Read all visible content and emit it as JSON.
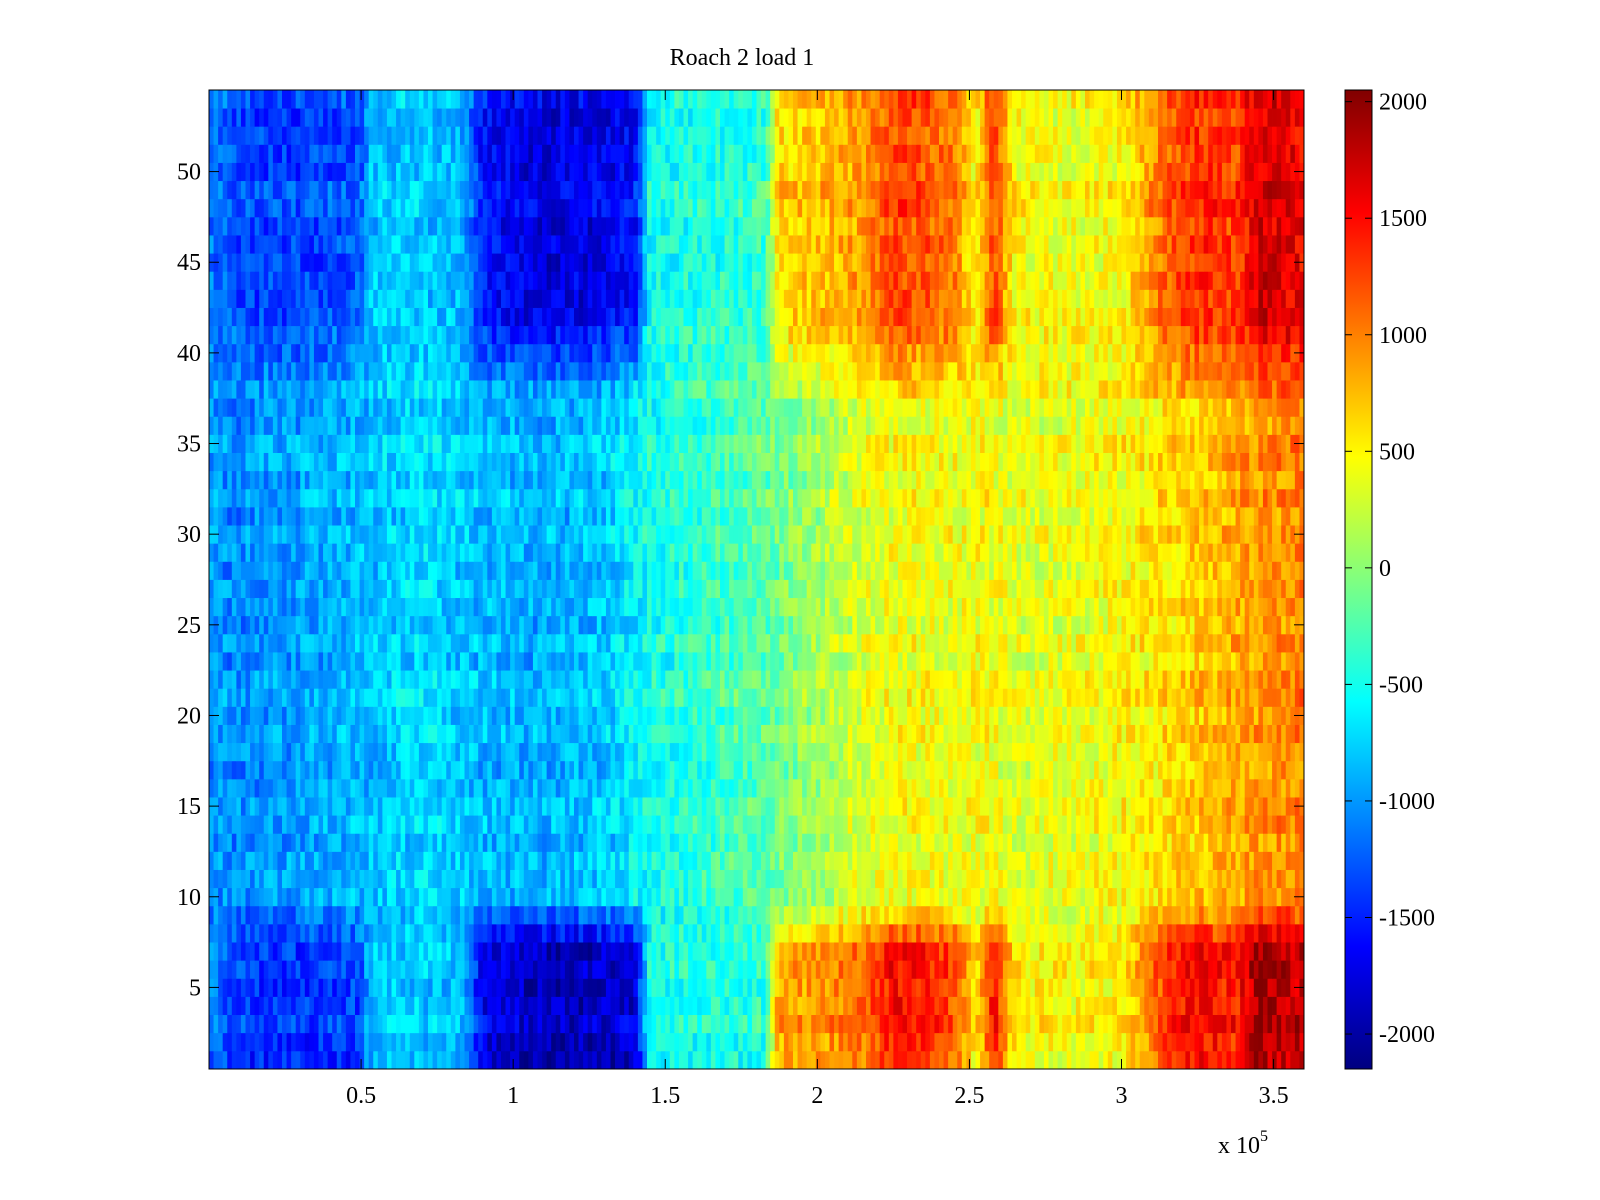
{
  "chart_data": {
    "type": "heatmap",
    "title": "Roach 2 load 1",
    "xlabel": "",
    "ylabel": "",
    "x_exponent_label": "x 10",
    "x_exponent_value": "5",
    "xlim": [
      0,
      360000
    ],
    "ylim": [
      0.5,
      54.5
    ],
    "x_ticks": [
      {
        "value": 50000,
        "label": "0.5"
      },
      {
        "value": 100000,
        "label": "1"
      },
      {
        "value": 150000,
        "label": "1.5"
      },
      {
        "value": 200000,
        "label": "2"
      },
      {
        "value": 250000,
        "label": "2.5"
      },
      {
        "value": 300000,
        "label": "3"
      },
      {
        "value": 350000,
        "label": "3.5"
      }
    ],
    "y_ticks": [
      {
        "value": 5,
        "label": "5"
      },
      {
        "value": 10,
        "label": "10"
      },
      {
        "value": 15,
        "label": "15"
      },
      {
        "value": 20,
        "label": "20"
      },
      {
        "value": 25,
        "label": "25"
      },
      {
        "value": 30,
        "label": "30"
      },
      {
        "value": 35,
        "label": "35"
      },
      {
        "value": 40,
        "label": "40"
      },
      {
        "value": 45,
        "label": "45"
      },
      {
        "value": 50,
        "label": "50"
      }
    ],
    "rows": 54,
    "colorbar": {
      "colormap": "jet",
      "clim": [
        -2150,
        2050
      ],
      "ticks": [
        {
          "value": 2000,
          "label": "2000"
        },
        {
          "value": 1500,
          "label": "1500"
        },
        {
          "value": 1000,
          "label": "1000"
        },
        {
          "value": 500,
          "label": "500"
        },
        {
          "value": 0,
          "label": "0"
        },
        {
          "value": -500,
          "label": "-500"
        },
        {
          "value": -1000,
          "label": "-1000"
        },
        {
          "value": -1500,
          "label": "-1500"
        },
        {
          "value": -2000,
          "label": "-2000"
        }
      ]
    },
    "base_profile": {
      "x": [
        0,
        10000,
        30000,
        50000,
        70000,
        90000,
        110000,
        130000,
        145000,
        165000,
        185000,
        200000,
        215000,
        230000,
        245000,
        255000,
        265000,
        285000,
        310000,
        330000,
        345000,
        360000
      ],
      "value": [
        -1000,
        -1050,
        -950,
        -850,
        -700,
        -850,
        -900,
        -800,
        -500,
        -350,
        -150,
        100,
        350,
        450,
        400,
        450,
        350,
        400,
        550,
        750,
        900,
        1000
      ]
    },
    "edge_row_bands": [
      [
        1,
        9
      ],
      [
        38,
        54
      ]
    ],
    "edge_profile": {
      "x": [
        0,
        10000,
        30000,
        50000,
        53000,
        70000,
        83000,
        90000,
        100000,
        110000,
        130000,
        140000,
        145000,
        165000,
        183000,
        187000,
        200000,
        215000,
        225000,
        235000,
        245000,
        252000,
        258000,
        265000,
        280000,
        300000,
        315000,
        325000,
        338000,
        345000,
        360000
      ],
      "value": [
        -1100,
        -1400,
        -1450,
        -1350,
        -800,
        -800,
        -850,
        -1700,
        -1850,
        -1950,
        -1900,
        -1800,
        -500,
        -450,
        -400,
        850,
        900,
        1050,
        1500,
        1400,
        1200,
        500,
        1500,
        550,
        450,
        500,
        1300,
        1550,
        1400,
        1950,
        1750
      ]
    }
  }
}
